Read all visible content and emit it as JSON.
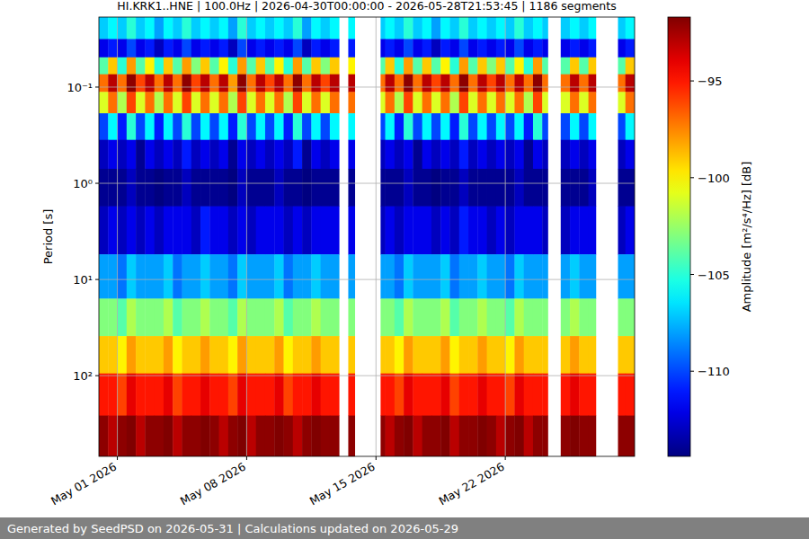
{
  "chart_data": {
    "type": "heatmap",
    "title": "HI.KRK1..HNE | 100.0Hz | 2026-04-30T00:00:00 - 2026-05-28T21:53:45 | 1186 segments",
    "footer": "Generated by SeedPSD on 2026-05-31 | Calculations updated on 2026-05-29",
    "y_label": "Period [s]",
    "x": [
      "2026-04-30T00:00",
      "2026-04-30T12:00",
      "2026-05-01T00:00",
      "2026-05-01T12:00",
      "2026-05-02T00:00",
      "2026-05-02T12:00",
      "2026-05-03T00:00",
      "2026-05-03T12:00",
      "2026-05-04T00:00",
      "2026-05-04T12:00",
      "2026-05-05T00:00",
      "2026-05-05T12:00",
      "2026-05-06T00:00",
      "2026-05-06T12:00",
      "2026-05-07T00:00",
      "2026-05-07T12:00",
      "2026-05-08T00:00",
      "2026-05-08T12:00",
      "2026-05-09T00:00",
      "2026-05-09T12:00",
      "2026-05-10T00:00",
      "2026-05-10T12:00",
      "2026-05-11T00:00",
      "2026-05-11T12:00",
      "2026-05-12T00:00",
      "2026-05-12T12:00",
      "2026-05-13T00:00",
      "2026-05-13T12:00",
      "2026-05-13T20:24",
      "2026-05-15T06:00",
      "2026-05-15T12:00",
      "2026-05-16T00:00",
      "2026-05-16T12:00",
      "2026-05-17T00:00",
      "2026-05-17T12:00",
      "2026-05-18T00:00",
      "2026-05-18T12:00",
      "2026-05-19T00:00",
      "2026-05-19T12:00",
      "2026-05-20T00:00",
      "2026-05-20T12:00",
      "2026-05-21T00:00",
      "2026-05-21T12:00",
      "2026-05-22T00:00",
      "2026-05-22T12:00",
      "2026-05-23T00:00",
      "2026-05-23T12:00",
      "2026-05-24T00:00",
      "2026-05-24T07:12",
      "2026-05-25T00:00",
      "2026-05-25T12:00",
      "2026-05-26T00:00",
      "2026-05-26T12:00",
      "2026-05-26T21:36",
      "2026-05-28T02:24",
      "2026-05-28T12:00"
    ],
    "xlim": [
      "2026-04-30T00:00",
      "2026-05-29T00:00"
    ],
    "xticks": [
      {
        "value": "2026-05-01T00:00",
        "label": "May 01 2026"
      },
      {
        "value": "2026-05-08T00:00",
        "label": "May 08 2026"
      },
      {
        "value": "2026-05-15T00:00",
        "label": "May 15 2026"
      },
      {
        "value": "2026-05-22T00:00",
        "label": "May 22 2026"
      }
    ],
    "y": [
      0.025,
      0.04,
      0.06,
      0.09,
      0.14,
      0.25,
      0.5,
      1,
      3,
      10,
      25,
      60,
      150,
      450
    ],
    "ylim": [
      0.0187,
      690
    ],
    "yticks": [
      {
        "value": 0.1,
        "label": "10⁻¹"
      },
      {
        "value": 1,
        "label": "10⁰"
      },
      {
        "value": 10,
        "label": "10¹"
      },
      {
        "value": 100,
        "label": "10²"
      }
    ],
    "log": "y",
    "grid": true,
    "z": [
      [
        -107,
        -106,
        -107,
        -105,
        -107,
        -106,
        -108,
        -106,
        -107,
        -105,
        -107,
        -106,
        -107,
        -106,
        -108,
        -105,
        -107,
        -106,
        -107,
        -106,
        -107,
        -105,
        -108,
        -106,
        -107,
        -106,
        null,
        -106,
        null,
        -107,
        -106,
        -107,
        -105,
        -107,
        -106,
        -108,
        -106,
        -107,
        -105,
        -107,
        -106,
        -107,
        -106,
        -107,
        -105,
        -107,
        -106,
        -107,
        null,
        -107,
        -106,
        -107,
        -106,
        null,
        -107,
        -106
      ],
      [
        -112,
        -111,
        -112,
        -110,
        -112,
        -111,
        -113,
        -111,
        -112,
        -110,
        -112,
        -111,
        -112,
        -111,
        -113,
        -110,
        -112,
        -111,
        -112,
        -111,
        -112,
        -110,
        -113,
        -111,
        -112,
        -111,
        null,
        -111,
        null,
        -112,
        -111,
        -112,
        -110,
        -112,
        -111,
        -113,
        -111,
        -112,
        -110,
        -112,
        -111,
        -112,
        -111,
        -112,
        -110,
        -112,
        -111,
        -112,
        null,
        -112,
        -111,
        -112,
        -111,
        null,
        -112,
        -111
      ],
      [
        -104,
        -99,
        -105,
        -98,
        -104,
        -100,
        -105,
        -99,
        -104,
        -98,
        -103,
        -99,
        -104,
        -100,
        -105,
        -98,
        -104,
        -99,
        -104,
        -100,
        -105,
        -98,
        -104,
        -99,
        -103,
        -99,
        null,
        -100,
        null,
        -104,
        -99,
        -105,
        -98,
        -104,
        -99,
        -104,
        -100,
        -105,
        -98,
        -104,
        -99,
        -103,
        -99,
        -104,
        -100,
        -105,
        -98,
        -104,
        null,
        -104,
        -99,
        -104,
        -99,
        null,
        -104,
        -99
      ],
      [
        -97,
        -93,
        -97,
        -92,
        -96,
        -93,
        -97,
        -93,
        -97,
        -92,
        -96,
        -93,
        -97,
        -93,
        -98,
        -92,
        -97,
        -93,
        -96,
        -93,
        -97,
        -92,
        -97,
        -93,
        -96,
        -93,
        null,
        -93,
        null,
        -97,
        -93,
        -97,
        -92,
        -97,
        -93,
        -96,
        -93,
        -97,
        -92,
        -97,
        -93,
        -96,
        -93,
        -97,
        -93,
        -97,
        -92,
        -97,
        null,
        -97,
        -93,
        -97,
        -93,
        null,
        -97,
        -93
      ],
      [
        -101,
        -97,
        -102,
        -96,
        -101,
        -97,
        -102,
        -97,
        -101,
        -96,
        -101,
        -97,
        -101,
        -97,
        -102,
        -96,
        -101,
        -97,
        -101,
        -97,
        -102,
        -96,
        -101,
        -97,
        -101,
        -97,
        null,
        -97,
        null,
        -101,
        -97,
        -102,
        -96,
        -101,
        -97,
        -101,
        -97,
        -102,
        -96,
        -101,
        -97,
        -101,
        -97,
        -101,
        -97,
        -102,
        -96,
        -101,
        null,
        -101,
        -97,
        -101,
        -97,
        null,
        -101,
        -97
      ],
      [
        -110,
        -106,
        -111,
        -105,
        -110,
        -106,
        -111,
        -106,
        -110,
        -105,
        -110,
        -106,
        -110,
        -106,
        -111,
        -105,
        -110,
        -106,
        -110,
        -106,
        -111,
        -105,
        -110,
        -106,
        -110,
        -106,
        null,
        -106,
        null,
        -110,
        -106,
        -111,
        -105,
        -110,
        -106,
        -110,
        -106,
        -111,
        -105,
        -110,
        -106,
        -110,
        -106,
        -110,
        -106,
        -111,
        -105,
        -110,
        null,
        -110,
        -106,
        -110,
        -106,
        null,
        -110,
        -106
      ],
      [
        -113,
        -112,
        -113,
        -112,
        -114,
        -112,
        -113,
        -112,
        -113,
        -111,
        -113,
        -112,
        -113,
        -112,
        -114,
        -112,
        -113,
        -112,
        -113,
        -112,
        -113,
        -111,
        -114,
        -112,
        -113,
        -112,
        null,
        -112,
        null,
        -113,
        -112,
        -113,
        -112,
        -114,
        -112,
        -113,
        -112,
        -113,
        -111,
        -113,
        -112,
        -113,
        -112,
        -113,
        -112,
        -114,
        -112,
        -113,
        null,
        -113,
        -112,
        -113,
        -112,
        null,
        -113,
        -112
      ],
      [
        -114,
        -114,
        -114,
        -113,
        -114,
        -114,
        -115,
        -114,
        -114,
        -113,
        -114,
        -114,
        -114,
        -114,
        -115,
        -113,
        -114,
        -114,
        -114,
        -113,
        -114,
        -114,
        -115,
        -114,
        -114,
        -114,
        null,
        -114,
        null,
        -114,
        -114,
        -114,
        -113,
        -114,
        -114,
        -115,
        -114,
        -114,
        -113,
        -114,
        -114,
        -114,
        -114,
        -114,
        -113,
        -114,
        -114,
        -114,
        null,
        -114,
        -114,
        -114,
        -113,
        null,
        -114,
        -114
      ],
      [
        -113,
        -112,
        -113,
        -112,
        -113,
        -112,
        -113,
        -112,
        -112,
        -112,
        -113,
        -111,
        -112,
        -112,
        -113,
        -112,
        -113,
        -112,
        -112,
        -112,
        -113,
        -112,
        -113,
        -112,
        -112,
        -112,
        null,
        -112,
        null,
        -113,
        -112,
        -113,
        -112,
        -112,
        -112,
        -113,
        -112,
        -113,
        -111,
        -112,
        -112,
        -113,
        -112,
        -113,
        -112,
        -112,
        -112,
        -113,
        null,
        -113,
        -112,
        -112,
        -112,
        null,
        -113,
        -112
      ],
      [
        -108,
        -108,
        -109,
        -107,
        -108,
        -108,
        -108,
        -107,
        -109,
        -108,
        -108,
        -107,
        -108,
        -108,
        -109,
        -107,
        -108,
        -108,
        -108,
        -107,
        -109,
        -108,
        -108,
        -107,
        -108,
        -108,
        null,
        -108,
        null,
        -108,
        -108,
        -109,
        -107,
        -108,
        -108,
        -108,
        -107,
        -109,
        -108,
        -108,
        -107,
        -108,
        -108,
        -109,
        -107,
        -108,
        -108,
        -108,
        null,
        -108,
        -107,
        -108,
        -108,
        null,
        -108,
        -108
      ],
      [
        -103,
        -103,
        -104,
        -102,
        -103,
        -103,
        -103,
        -102,
        -104,
        -103,
        -103,
        -102,
        -103,
        -103,
        -104,
        -102,
        -103,
        -103,
        -103,
        -102,
        -104,
        -103,
        -103,
        -102,
        -103,
        -103,
        null,
        -103,
        null,
        -103,
        -103,
        -104,
        -102,
        -103,
        -103,
        -103,
        -102,
        -104,
        -103,
        -103,
        -102,
        -103,
        -103,
        -104,
        -102,
        -103,
        -103,
        -103,
        null,
        -103,
        -102,
        -103,
        -103,
        null,
        -103,
        -103
      ],
      [
        -99,
        -99,
        -100,
        -98,
        -99,
        -99,
        -99,
        -98,
        -100,
        -99,
        -99,
        -98,
        -99,
        -99,
        -100,
        -98,
        -99,
        -99,
        -99,
        -98,
        -100,
        -99,
        -99,
        -98,
        -99,
        -99,
        null,
        -99,
        null,
        -99,
        -99,
        -100,
        -98,
        -99,
        -99,
        -99,
        -98,
        -100,
        -99,
        -99,
        -98,
        -99,
        -99,
        -100,
        -98,
        -99,
        -99,
        -99,
        null,
        -99,
        -98,
        -99,
        -99,
        null,
        -99,
        -99
      ],
      [
        -95,
        -95,
        -96,
        -94,
        -95,
        -95,
        -95,
        -94,
        -96,
        -95,
        -95,
        -94,
        -95,
        -95,
        -96,
        -94,
        -95,
        -95,
        -95,
        -94,
        -96,
        -95,
        -95,
        -94,
        -95,
        -95,
        null,
        -95,
        null,
        -95,
        -95,
        -96,
        -94,
        -95,
        -95,
        -95,
        -94,
        -96,
        -95,
        -95,
        -94,
        -95,
        -95,
        -96,
        -94,
        -95,
        -95,
        -95,
        null,
        -95,
        -94,
        -95,
        -95,
        null,
        -95,
        -95
      ],
      [
        -92,
        -93,
        -92,
        -91,
        -93,
        -92,
        -92,
        -91,
        -93,
        -92,
        -92,
        -91,
        -92,
        -93,
        -92,
        -91,
        -93,
        -92,
        -92,
        -91,
        -92,
        -93,
        -92,
        -91,
        -92,
        -92,
        null,
        -92,
        null,
        -92,
        -93,
        -92,
        -91,
        -93,
        -92,
        -92,
        -91,
        -93,
        -92,
        -92,
        -91,
        -92,
        -93,
        -92,
        -91,
        -93,
        -92,
        -92,
        null,
        -92,
        -91,
        -92,
        -92,
        null,
        -92,
        -92
      ]
    ],
    "colorbar": {
      "label": "Amplitude [m²/s⁴/Hz] [dB]",
      "range": [
        -114.4,
        -91.7
      ],
      "ticks": [
        {
          "value": -95,
          "label": "−95"
        },
        {
          "value": -100,
          "label": "−100"
        },
        {
          "value": -105,
          "label": "−105"
        },
        {
          "value": -110,
          "label": "−110"
        }
      ]
    }
  }
}
